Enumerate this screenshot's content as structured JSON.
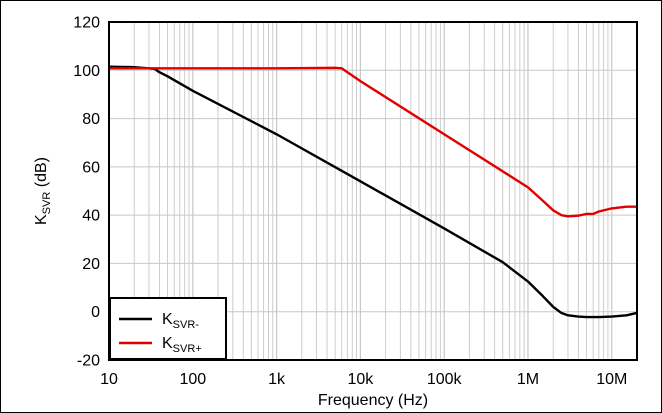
{
  "chart_data": {
    "type": "line",
    "title": "",
    "xlabel": "Frequency (Hz)",
    "ylabel": "KSVR (dB)",
    "ylabel_parts": {
      "main": "K",
      "sub": "SVR",
      "rest": " (dB)"
    },
    "x_scale": "log",
    "xlim": [
      10,
      20000000
    ],
    "ylim": [
      -20,
      120
    ],
    "x_ticks": [
      10,
      100,
      1000,
      10000,
      100000,
      1000000,
      10000000
    ],
    "x_tick_labels": [
      "10",
      "100",
      "1k",
      "10k",
      "100k",
      "1M",
      "10M"
    ],
    "y_ticks": [
      -20,
      0,
      20,
      40,
      60,
      80,
      100,
      120
    ],
    "y_tick_labels": [
      "-20",
      "0",
      "20",
      "40",
      "60",
      "80",
      "100",
      "120"
    ],
    "grid": true,
    "legend_position": "bottom-left",
    "series": [
      {
        "name": "KSVR-",
        "name_parts": {
          "main": "K",
          "sub": "SVR-"
        },
        "color": "#000000",
        "x": [
          10,
          20,
          35,
          40,
          50,
          100,
          1000,
          10000,
          100000,
          500000,
          1000000,
          1500000,
          2000000,
          2500000,
          3000000,
          4000000,
          5000000,
          7000000,
          10000000,
          15000000,
          20000000
        ],
        "y": [
          101.5,
          101.3,
          100.6,
          99.2,
          97.5,
          91.5,
          73.5,
          54.0,
          34.5,
          20.5,
          12.5,
          6.5,
          2.0,
          -0.5,
          -1.5,
          -2.0,
          -2.2,
          -2.2,
          -2.0,
          -1.5,
          -0.5
        ]
      },
      {
        "name": "KSVR+",
        "name_parts": {
          "main": "K",
          "sub": "SVR+"
        },
        "color": "#e00000",
        "x": [
          10,
          100,
          1000,
          5000,
          6000,
          10000,
          100000,
          1000000,
          1500000,
          2000000,
          2500000,
          3000000,
          4000000,
          5000000,
          6000000,
          7000000,
          10000000,
          15000000,
          20000000
        ],
        "y": [
          100.8,
          100.8,
          100.8,
          101.0,
          100.8,
          95.5,
          73.5,
          51.5,
          46.0,
          42.0,
          40.0,
          39.5,
          39.8,
          40.5,
          40.5,
          41.5,
          42.8,
          43.5,
          43.5
        ]
      }
    ]
  }
}
